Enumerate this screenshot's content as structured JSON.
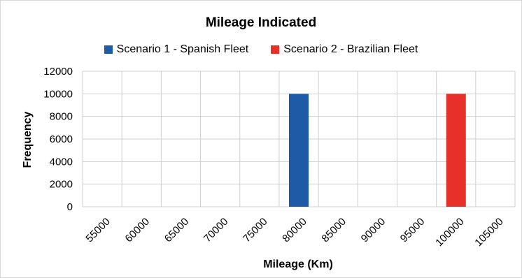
{
  "chart_data": {
    "type": "bar",
    "title": "Mileage Indicated",
    "xlabel": "Mileage (Km)",
    "ylabel": "Frequency",
    "categories": [
      "55000",
      "60000",
      "65000",
      "70000",
      "75000",
      "80000",
      "85000",
      "90000",
      "95000",
      "100000",
      "105000"
    ],
    "yticks": [
      "0",
      "2000",
      "4000",
      "6000",
      "8000",
      "10000",
      "12000"
    ],
    "ylim": [
      0,
      12000
    ],
    "grid": true,
    "legend_position": "top",
    "series": [
      {
        "name": "Scenario 1 - Spanish Fleet",
        "color": "#1f5aa6",
        "values": [
          0,
          0,
          0,
          0,
          0,
          10000,
          0,
          0,
          0,
          0,
          0
        ]
      },
      {
        "name": "Scenario 2 - Brazilian Fleet",
        "color": "#e8302a",
        "values": [
          0,
          0,
          0,
          0,
          0,
          0,
          0,
          0,
          0,
          10000,
          0
        ]
      }
    ]
  }
}
